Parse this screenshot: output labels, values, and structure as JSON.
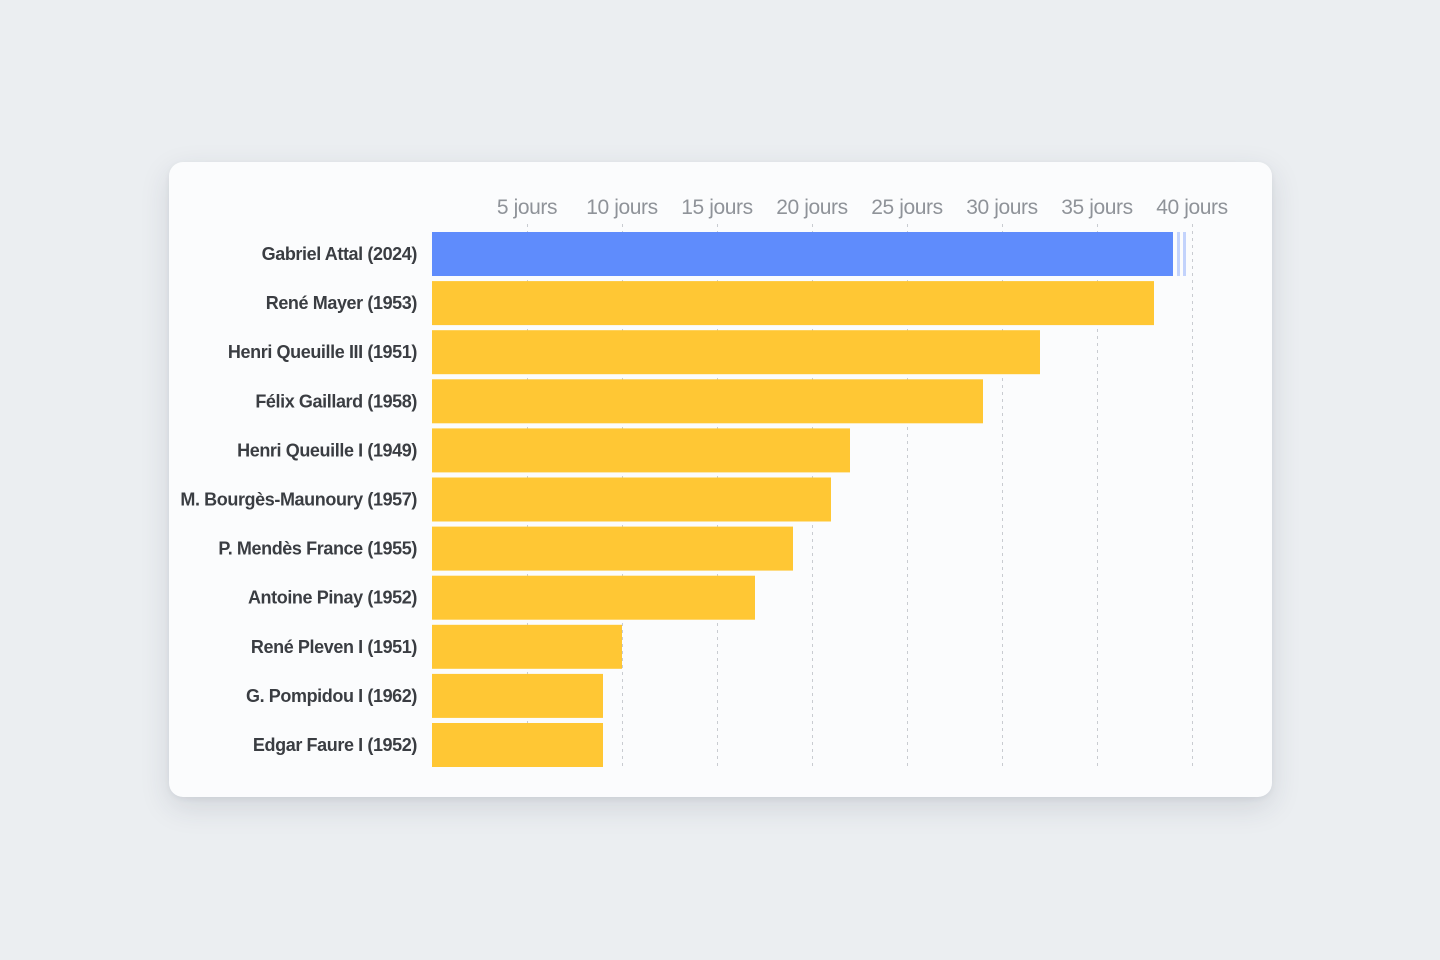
{
  "chart_data": {
    "type": "bar",
    "orientation": "horizontal",
    "categories": [
      "Gabriel Attal (2024)",
      "René Mayer (1953)",
      "Henri Queuille III (1951)",
      "Félix Gaillard (1958)",
      "Henri Queuille I (1949)",
      "M. Bourgès-Maunoury (1957)",
      "P. Mendès France (1955)",
      "Antoine Pinay (1952)",
      "René Pleven I (1951)",
      "G. Pompidou I (1962)",
      "Edgar Faure I (1952)"
    ],
    "values": [
      39,
      38,
      32,
      29,
      22,
      21,
      19,
      17,
      10,
      9,
      9
    ],
    "x_ticks": [
      5,
      10,
      15,
      20,
      25,
      30,
      35,
      40
    ],
    "x_tick_labels": [
      "5 jours",
      "10 jours",
      "15 jours",
      "20 jours",
      "25 jours",
      "30 jours",
      "35 jours",
      "40 jours"
    ],
    "xlim": [
      0,
      40
    ],
    "title": "",
    "xlabel": "",
    "ylabel": "",
    "grid": true,
    "axis_position": "top",
    "highlight_index": 0,
    "colors": {
      "highlight": "#5f8cfc",
      "default": "#ffc734",
      "highlight_trail": "#c3d3fc",
      "grid": "#c9ccd1"
    }
  }
}
